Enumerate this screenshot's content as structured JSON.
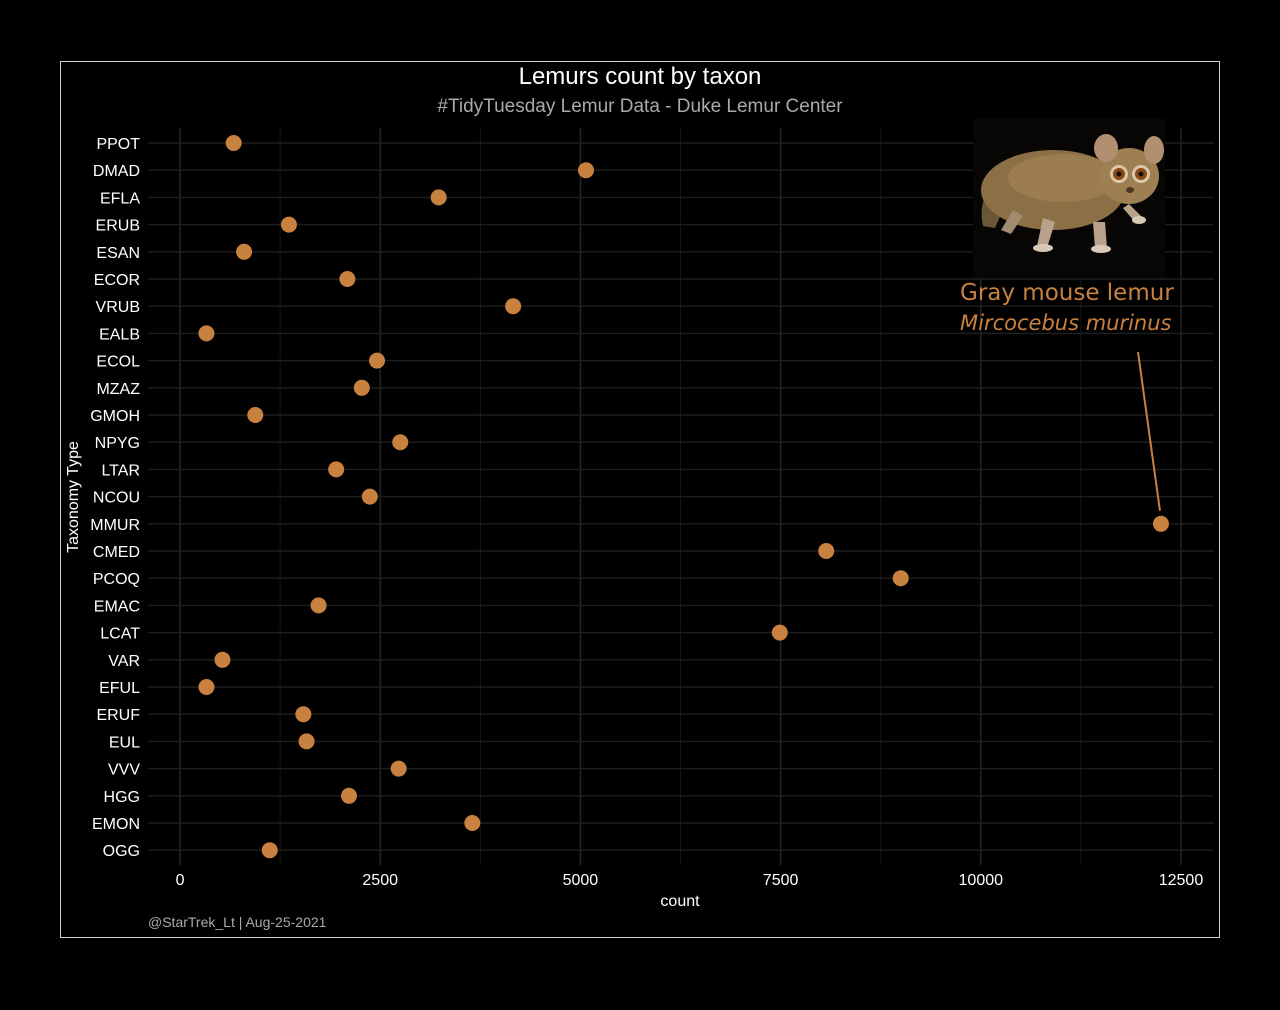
{
  "chart_data": {
    "type": "scatter",
    "title": "Lemurs count by taxon",
    "subtitle": "#TidyTuesday Lemur Data - Duke Lemur Center",
    "xlabel": "count",
    "ylabel": "Taxonomy Type",
    "xlim": [
      -400,
      12900
    ],
    "x_ticks": [
      0,
      2500,
      5000,
      7500,
      10000,
      12500
    ],
    "x_tick_labels": [
      "0",
      "2500",
      "5000",
      "7500",
      "10000",
      "12500"
    ],
    "grid": true,
    "point_color": "#c8813f",
    "categories": [
      "PPOT",
      "DMAD",
      "EFLA",
      "ERUB",
      "ESAN",
      "ECOR",
      "VRUB",
      "EALB",
      "ECOL",
      "MZAZ",
      "GMOH",
      "NPYG",
      "LTAR",
      "NCOU",
      "MMUR",
      "CMED",
      "PCOQ",
      "EMAC",
      "LCAT",
      "VAR",
      "EFUL",
      "ERUF",
      "EUL",
      "VVV",
      "HGG",
      "EMON",
      "OGG"
    ],
    "values": [
      670,
      5070,
      3230,
      1360,
      800,
      2090,
      4160,
      330,
      2460,
      2270,
      940,
      2750,
      1950,
      2370,
      12250,
      8070,
      9000,
      1730,
      7490,
      530,
      330,
      1540,
      1580,
      2730,
      2110,
      3650,
      1120
    ],
    "annotation": {
      "name": "Gray mouse lemur",
      "scientific_name": "Mircocebus murinus",
      "target": "MMUR"
    },
    "caption": "@StarTrek_Lt | Aug-25-2021"
  },
  "colors": {
    "background": "#000000",
    "grid": "#2a2a2a",
    "accent": "#c8813f",
    "text": "#ffffff",
    "muted_text": "#a9a9a9"
  }
}
